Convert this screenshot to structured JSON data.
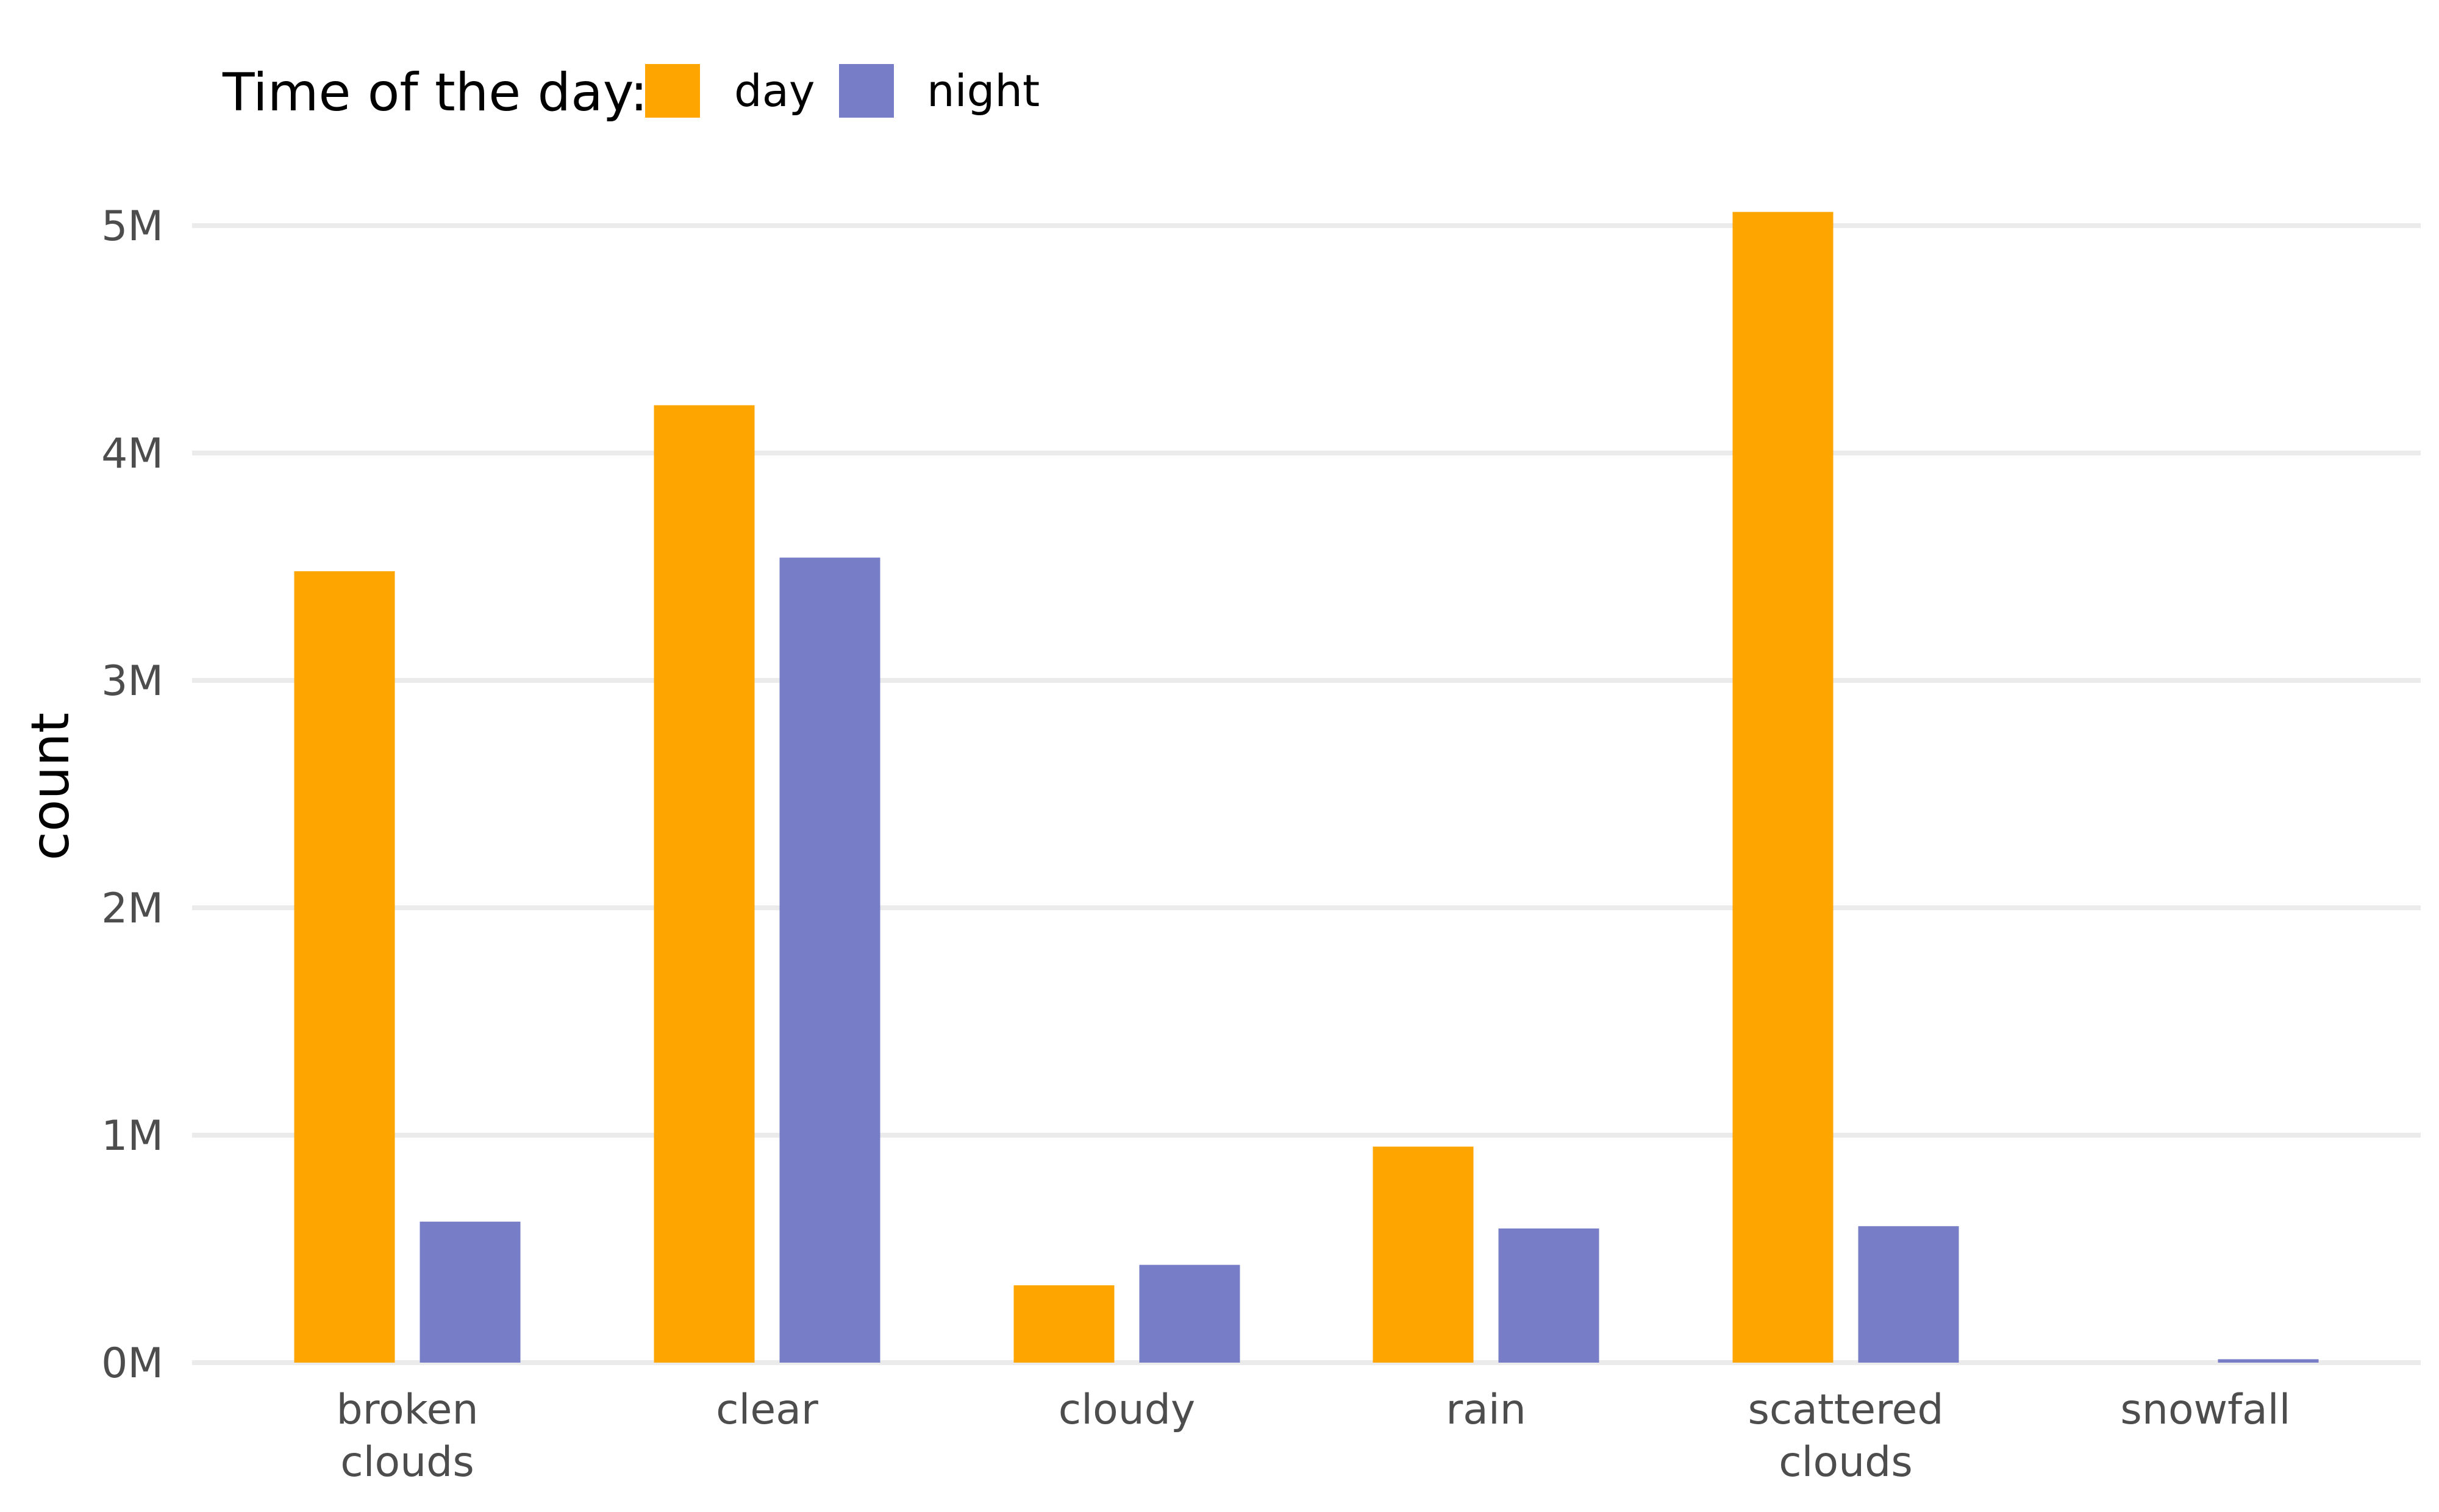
{
  "chart_data": {
    "type": "bar",
    "categories": [
      [
        "broken",
        "clouds"
      ],
      [
        "clear"
      ],
      [
        "cloudy"
      ],
      [
        "rain"
      ],
      [
        "scattered",
        "clouds"
      ],
      [
        "snowfall"
      ]
    ],
    "series": [
      {
        "name": "day",
        "color": "#FFA500",
        "values": [
          3480000,
          4210000,
          340000,
          950000,
          5060000,
          0
        ]
      },
      {
        "name": "night",
        "color": "#777DC7",
        "values": [
          620000,
          3540000,
          430000,
          590000,
          600000,
          15000
        ]
      }
    ],
    "title": "",
    "xlabel": "",
    "ylabel": "count",
    "ylim": [
      0,
      5200000
    ],
    "y_ticks": [
      0,
      1000000,
      2000000,
      3000000,
      4000000,
      5000000
    ],
    "y_tick_labels": [
      "0M",
      "1M",
      "2M",
      "3M",
      "4M",
      "5M"
    ],
    "legend": {
      "title": "Time of the day:",
      "position": "top-left"
    },
    "grid": true
  }
}
